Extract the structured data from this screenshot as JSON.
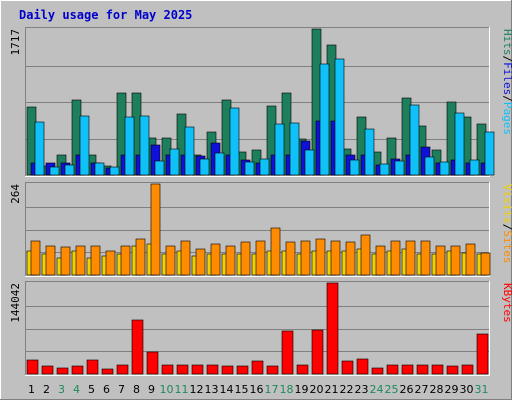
{
  "chart_data": {
    "type": "bar",
    "title": "Daily usage for May 2025",
    "categories": [
      "1",
      "2",
      "3",
      "4",
      "5",
      "6",
      "7",
      "8",
      "9",
      "10",
      "11",
      "12",
      "13",
      "14",
      "15",
      "16",
      "17",
      "18",
      "19",
      "20",
      "21",
      "22",
      "23",
      "24",
      "25",
      "26",
      "27",
      "28",
      "29",
      "30",
      "31"
    ],
    "weekend_days": [
      "3",
      "4",
      "10",
      "11",
      "17",
      "18",
      "24",
      "25",
      "31"
    ],
    "colors": {
      "hits": "#1e7f5c",
      "files": "#1010d8",
      "pages": "#10c0f8",
      "visits": "#f0d000",
      "sites": "#ff8c00",
      "kbytes": "#ff0000",
      "weekday_label": "#000000",
      "weekend_label": "#1e8a5a",
      "title": "#0000cc"
    },
    "panels": [
      {
        "id": "hits_files_pages",
        "ymax_label": "1717",
        "ylim": [
          0,
          1717
        ],
        "legend": [
          {
            "text": "Pages",
            "color": "#10c0f8"
          },
          {
            "text": "Files",
            "color": "#1010d8"
          },
          {
            "text": "Hits",
            "color": "#1e7f5c"
          }
        ],
        "series": [
          {
            "key": "hits",
            "values": [
              800,
              100,
              230,
              880,
              230,
              100,
              970,
              970,
              430,
              430,
              720,
              240,
              500,
              880,
              270,
              290,
              810,
              970,
              420,
              1717,
              1530,
              310,
              680,
              270,
              430,
              910,
              580,
              290,
              860,
              680,
              600
            ]
          },
          {
            "key": "files",
            "values": [
              140,
              140,
              140,
              240,
              140,
              80,
              240,
              240,
              350,
              240,
              240,
              220,
              380,
              240,
              180,
              140,
              240,
              240,
              400,
              640,
              640,
              240,
              240,
              120,
              190,
              240,
              330,
              140,
              180,
              140,
              140
            ]
          },
          {
            "key": "pages",
            "values": [
              620,
              90,
              120,
              690,
              140,
              90,
              680,
              690,
              170,
              300,
              570,
              190,
              260,
              790,
              150,
              190,
              600,
              610,
              290,
              1300,
              1370,
              180,
              540,
              130,
              160,
              820,
              210,
              150,
              730,
              180,
              510
            ]
          }
        ]
      },
      {
        "id": "visits_sites",
        "ymax_label": "264",
        "ylim": [
          0,
          264
        ],
        "legend": [
          {
            "text": "Sites",
            "color": "#ff8c00"
          },
          {
            "text": "Visits",
            "color": "#f0d000"
          }
        ],
        "series": [
          {
            "key": "visits",
            "values": [
              70,
              60,
              50,
              70,
              50,
              55,
              60,
              85,
              90,
              60,
              70,
              55,
              60,
              60,
              60,
              60,
              70,
              70,
              60,
              70,
              70,
              70,
              75,
              60,
              70,
              75,
              60,
              60,
              70,
              65,
              60
            ]
          },
          {
            "key": "sites",
            "values": [
              100,
              85,
              80,
              85,
              85,
              70,
              85,
              105,
              264,
              85,
              100,
              75,
              90,
              85,
              95,
              100,
              135,
              95,
              100,
              105,
              100,
              95,
              115,
              85,
              100,
              100,
              100,
              85,
              85,
              90,
              65
            ]
          }
        ]
      },
      {
        "id": "kbytes",
        "ymax_label": "144042",
        "ylim": [
          0,
          144042
        ],
        "legend": [
          {
            "text": "KBytes",
            "color": "#ff0000"
          }
        ],
        "series": [
          {
            "key": "kbytes",
            "values": [
              22000,
              12000,
              10000,
              12000,
              22000,
              8000,
              15000,
              85000,
              35000,
              15000,
              14000,
              15000,
              14000,
              12000,
              12000,
              20000,
              12000,
              68000,
              14000,
              70000,
              144042,
              20000,
              24000,
              10000,
              14000,
              15000,
              15000,
              14000,
              12000,
              14000,
              63000
            ]
          }
        ]
      }
    ]
  }
}
